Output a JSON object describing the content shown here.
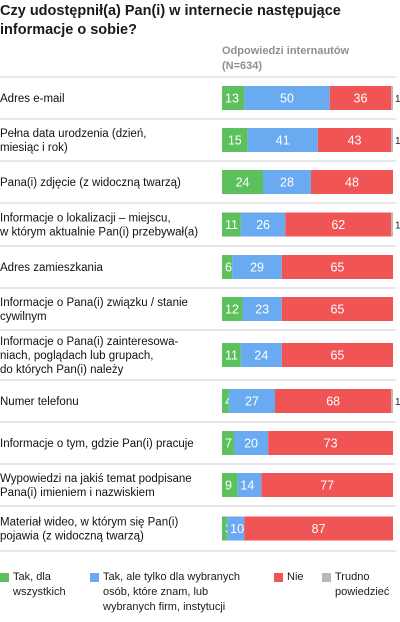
{
  "chart_data": {
    "type": "bar",
    "orientation": "horizontal",
    "stacked": true,
    "title": "Czy udostępnił(a) Pan(i) w internecie następujące informacje o sobie?",
    "subtitle": "Odpowiedzi internautów (N=634)",
    "unit": "%",
    "categories": [
      "Adres e-mail",
      "Pełna data urodzenia (dzień, miesiąc i rok)",
      "Pana(i) zdjęcie (z widoczną twarzą)",
      "Informacje o lokalizacji – miejscu, w którym aktualnie Pan(i) przebywał(a)",
      "Adres zamieszkania",
      "Informacje o Pana(i) związku / stanie cywilnym",
      "Informacje o Pana(i) zainteresowaniach, poglądach lub grupach, do których Pan(i) należy",
      "Numer telefonu",
      "Informacje o tym, gdzie Pan(i) pracuje",
      "Wypowiedzi na jakiś temat podpisane Pana(i) imieniem i nazwiskiem",
      "Materiał wideo, w którym się Pan(i) pojawia (z widoczną twarzą)"
    ],
    "category_lines": [
      [
        "Adres e-mail"
      ],
      [
        "Pełna data urodzenia (dzień,",
        "miesiąc i rok)"
      ],
      [
        "Pana(i) zdjęcie (z widoczną twarzą)"
      ],
      [
        "Informacje o lokalizacji – miejscu,",
        "w którym aktualnie Pan(i) przebywał(a)"
      ],
      [
        "Adres zamieszkania"
      ],
      [
        "Informacje o Pana(i) związku / stanie",
        "cywilnym"
      ],
      [
        "Informacje o Pana(i) zainteresowa-",
        "niach, poglądach lub grupach,",
        "do których Pan(i) należy"
      ],
      [
        "Numer telefonu"
      ],
      [
        "Informacje o tym, gdzie Pan(i) pracuje"
      ],
      [
        "Wypowiedzi na jakiś temat podpisane",
        "Pana(i) imieniem i nazwiskiem"
      ],
      [
        "Materiał wideo, w którym się Pan(i)",
        "pojawia (z widoczną twarzą)"
      ]
    ],
    "series": [
      {
        "name": "Tak, dla wszystkich",
        "color": "#5cc15c",
        "values": [
          13,
          15,
          24,
          11,
          6,
          12,
          11,
          4,
          7,
          9,
          3
        ]
      },
      {
        "name": "Tak, ale tylko dla wybranych osób, które znam, lub wybranych firm, instytucji",
        "color": "#6aaaf0",
        "values": [
          50,
          41,
          28,
          26,
          29,
          23,
          24,
          27,
          20,
          14,
          10
        ]
      },
      {
        "name": "Nie",
        "color": "#f05454",
        "values": [
          36,
          43,
          48,
          62,
          65,
          65,
          65,
          68,
          73,
          77,
          87
        ]
      },
      {
        "name": "Trudno powiedzieć",
        "color": "#b8b8b8",
        "values": [
          1,
          1,
          0,
          1,
          0,
          0,
          0,
          1,
          0,
          0,
          0
        ]
      }
    ],
    "xlim": [
      0,
      100
    ],
    "legend_position": "bottom"
  },
  "legend": {
    "items": [
      {
        "lines": [
          "Tak, dla",
          "wszystkich"
        ],
        "color": "#5cc15c"
      },
      {
        "lines": [
          "Tak, ale tylko dla wybranych",
          "osób, które znam, lub",
          "wybranych firm, instytucji"
        ],
        "color": "#6aaaf0"
      },
      {
        "lines": [
          "Nie"
        ],
        "color": "#f05454"
      },
      {
        "lines": [
          "Trudno",
          "powiedzieć"
        ],
        "color": "#b8b8b8"
      }
    ]
  }
}
